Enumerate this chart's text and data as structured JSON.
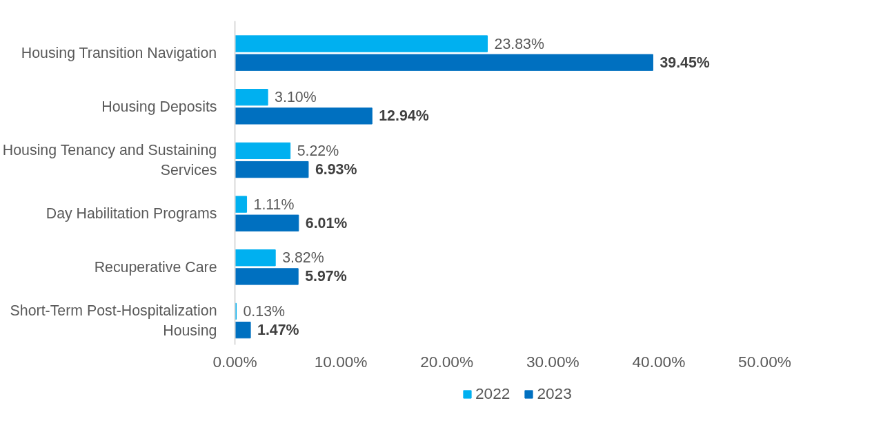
{
  "chart_data": {
    "type": "bar",
    "orientation": "horizontal",
    "categories": [
      "Housing Transition Navigation",
      "Housing Deposits",
      "Housing Tenancy and Sustaining Services",
      "Day Habilitation Programs",
      "Recuperative Care",
      "Short-Term Post-Hospitalization Housing"
    ],
    "series": [
      {
        "name": "2022",
        "color": "#00b0f0",
        "values": [
          23.83,
          3.1,
          5.22,
          1.11,
          3.82,
          0.13
        ],
        "value_labels": [
          "23.83%",
          "3.10%",
          "5.22%",
          "1.11%",
          "3.82%",
          "0.13%"
        ]
      },
      {
        "name": "2023",
        "color": "#0070c0",
        "values": [
          39.45,
          12.94,
          6.93,
          6.01,
          5.97,
          1.47
        ],
        "value_labels": [
          "39.45%",
          "12.94%",
          "6.93%",
          "6.01%",
          "5.97%",
          "1.47%"
        ]
      }
    ],
    "xlim": [
      0,
      50
    ],
    "xticks": [
      {
        "value": 0,
        "label": "0.00%"
      },
      {
        "value": 10,
        "label": "10.00%"
      },
      {
        "value": 20,
        "label": "20.00%"
      },
      {
        "value": 30,
        "label": "30.00%"
      },
      {
        "value": 40,
        "label": "40.00%"
      },
      {
        "value": 50,
        "label": "50.00%"
      }
    ],
    "grid": false,
    "legend": "bottom"
  }
}
